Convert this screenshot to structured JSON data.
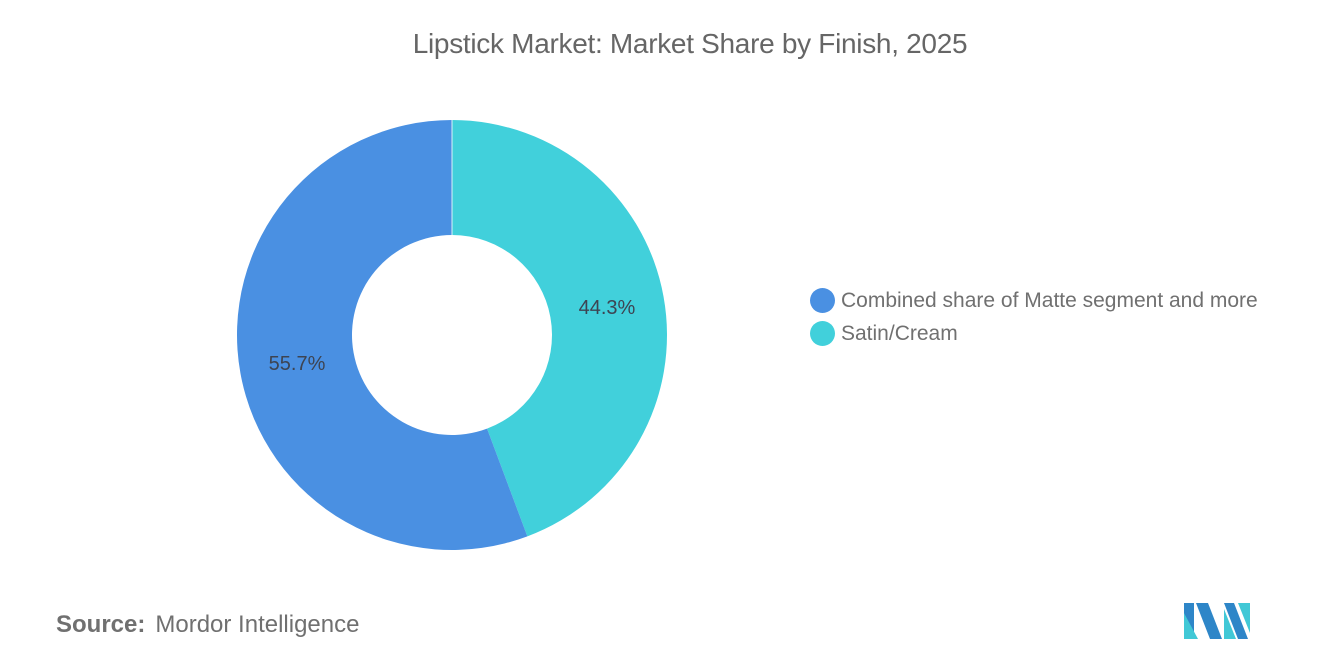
{
  "title": "Lipstick Market: Market Share by Finish, 2025",
  "chart_data": {
    "type": "pie",
    "variant": "donut",
    "title": "Lipstick Market: Market Share by Finish, 2025",
    "categories": [
      "Combined share of Matte segment and more",
      "Satin/Cream"
    ],
    "values": [
      55.7,
      44.3
    ],
    "unit": "%",
    "data_labels": [
      "55.7%",
      "44.3%"
    ],
    "colors": [
      "#4A90E2",
      "#41D0DB"
    ],
    "legend_position": "right"
  },
  "legend": {
    "items": [
      {
        "label": "Combined share of Matte segment and more",
        "color": "#4A90E2"
      },
      {
        "label": "Satin/Cream",
        "color": "#41D0DB"
      }
    ]
  },
  "source": {
    "key": "Source:",
    "value": "Mordor Intelligence"
  },
  "logo": {
    "name": "mordor-intelligence-logo",
    "colors": [
      "#2E86C8",
      "#41C8D6"
    ]
  }
}
